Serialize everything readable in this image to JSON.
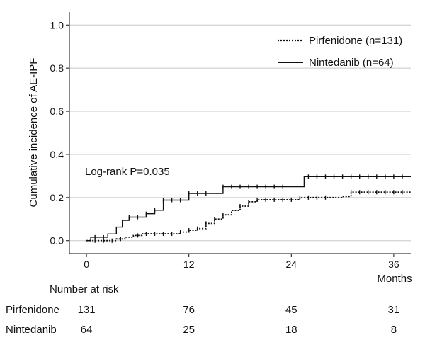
{
  "chart_data": {
    "type": "line",
    "subtype": "step",
    "ylabel": "Cumulative incidence of AE-IPF",
    "xlabel": "Months",
    "xlim": [
      -2,
      38
    ],
    "ylim": [
      -0.06,
      1.06
    ],
    "xticks": [
      "0",
      "12",
      "24",
      "36"
    ],
    "yticks": [
      "0.0",
      "0.2",
      "0.4",
      "0.6",
      "0.8",
      "1.0"
    ],
    "grid": "horizontal",
    "legend_position": "top-right",
    "annotation": "Log-rank P=0.035",
    "series": [
      {
        "name": "Pirfenidone (n=131)",
        "style": "dotted",
        "steps": [
          [
            0,
            0
          ],
          [
            3.5,
            0.008
          ],
          [
            4.5,
            0.016
          ],
          [
            5.5,
            0.024
          ],
          [
            6.5,
            0.032
          ],
          [
            11,
            0.04
          ],
          [
            12,
            0.048
          ],
          [
            13,
            0.056
          ],
          [
            14,
            0.08
          ],
          [
            15,
            0.1
          ],
          [
            16,
            0.12
          ],
          [
            17,
            0.14
          ],
          [
            18,
            0.16
          ],
          [
            19,
            0.18
          ],
          [
            20,
            0.19
          ],
          [
            25,
            0.2
          ],
          [
            30,
            0.205
          ],
          [
            31,
            0.225
          ],
          [
            38,
            0.225
          ]
        ],
        "censors": [
          1,
          2,
          3,
          4,
          6,
          7,
          8,
          9,
          10,
          11,
          12,
          13,
          14,
          15,
          16,
          18,
          19,
          20,
          21,
          22,
          23,
          24,
          25,
          26,
          27,
          28,
          31,
          32,
          33,
          34,
          35,
          36,
          37
        ]
      },
      {
        "name": "Nintedanib (n=64)",
        "style": "solid",
        "steps": [
          [
            0,
            0
          ],
          [
            0.5,
            0.016
          ],
          [
            2.5,
            0.031
          ],
          [
            3.5,
            0.063
          ],
          [
            4.2,
            0.094
          ],
          [
            5,
            0.109
          ],
          [
            7,
            0.125
          ],
          [
            8,
            0.141
          ],
          [
            9,
            0.188
          ],
          [
            12,
            0.219
          ],
          [
            16,
            0.25
          ],
          [
            25.5,
            0.297
          ],
          [
            38,
            0.297
          ]
        ],
        "censors": [
          1,
          2,
          5,
          6,
          7,
          8,
          9,
          10,
          11,
          12,
          13,
          14,
          16,
          17,
          18,
          19,
          20,
          21,
          22,
          23,
          26,
          27,
          28,
          29,
          30,
          31,
          32,
          33,
          34,
          35,
          36,
          37
        ]
      }
    ],
    "number_at_risk": {
      "title": "Number at risk",
      "rows": [
        {
          "label": "Pirfenidone",
          "values": [
            "131",
            "76",
            "45",
            "31"
          ]
        },
        {
          "label": "Nintedanib",
          "values": [
            "64",
            "25",
            "18",
            "8"
          ]
        }
      ]
    }
  }
}
